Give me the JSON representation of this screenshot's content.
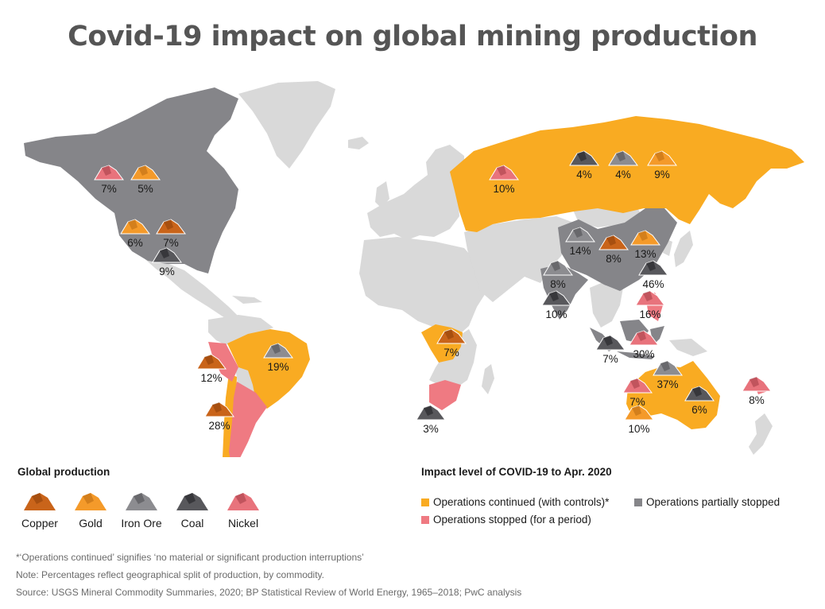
{
  "title": "Covid-19 impact on global mining production",
  "colors": {
    "continued": "#f9ab22",
    "partially_stopped": "#858589",
    "stopped": "#ef7a82",
    "unaffected": "#d9d9d9",
    "copper": "#c9641a",
    "gold": "#f49a2a",
    "iron_ore": "#8c8c90",
    "coal": "#58585c",
    "nickel": "#e8737c"
  },
  "regions": [
    {
      "name": "North America (USA & Canada)",
      "impact": "partially_stopped"
    },
    {
      "name": "Mexico",
      "impact": "unaffected"
    },
    {
      "name": "Peru",
      "impact": "stopped"
    },
    {
      "name": "Chile",
      "impact": "continued"
    },
    {
      "name": "Argentina",
      "impact": "stopped"
    },
    {
      "name": "Brazil",
      "impact": "continued"
    },
    {
      "name": "Russia",
      "impact": "continued"
    },
    {
      "name": "China",
      "impact": "partially_stopped"
    },
    {
      "name": "India",
      "impact": "partially_stopped"
    },
    {
      "name": "Indonesia",
      "impact": "partially_stopped"
    },
    {
      "name": "Philippines",
      "impact": "stopped"
    },
    {
      "name": "DR Congo",
      "impact": "continued"
    },
    {
      "name": "South Africa",
      "impact": "stopped"
    },
    {
      "name": "Australia",
      "impact": "continued"
    },
    {
      "name": "New Caledonia",
      "impact": "stopped"
    }
  ],
  "markers": [
    {
      "region": "Canada",
      "commodity": "nickel",
      "label": "7%"
    },
    {
      "region": "Canada",
      "commodity": "gold",
      "label": "5%"
    },
    {
      "region": "USA",
      "commodity": "gold",
      "label": "6%"
    },
    {
      "region": "USA",
      "commodity": "copper",
      "label": "7%"
    },
    {
      "region": "USA",
      "commodity": "coal",
      "label": "9%"
    },
    {
      "region": "Peru",
      "commodity": "copper",
      "label": "12%"
    },
    {
      "region": "Chile",
      "commodity": "copper",
      "label": "28%"
    },
    {
      "region": "Brazil",
      "commodity": "iron_ore",
      "label": "19%"
    },
    {
      "region": "Russia",
      "commodity": "nickel",
      "label": "10%"
    },
    {
      "region": "Russia",
      "commodity": "coal",
      "label": "4%"
    },
    {
      "region": "Russia",
      "commodity": "iron_ore",
      "label": "4%"
    },
    {
      "region": "Russia",
      "commodity": "gold",
      "label": "9%"
    },
    {
      "region": "China",
      "commodity": "iron_ore",
      "label": "14%"
    },
    {
      "region": "China",
      "commodity": "copper",
      "label": "8%"
    },
    {
      "region": "China",
      "commodity": "gold",
      "label": "13%"
    },
    {
      "region": "China",
      "commodity": "coal",
      "label": "46%"
    },
    {
      "region": "India",
      "commodity": "iron_ore",
      "label": "8%"
    },
    {
      "region": "India",
      "commodity": "coal",
      "label": "10%"
    },
    {
      "region": "Philippines",
      "commodity": "nickel",
      "label": "16%"
    },
    {
      "region": "Indonesia",
      "commodity": "coal",
      "label": "7%"
    },
    {
      "region": "Indonesia",
      "commodity": "nickel",
      "label": "30%"
    },
    {
      "region": "DR Congo",
      "commodity": "copper",
      "label": "7%"
    },
    {
      "region": "South Africa",
      "commodity": "coal",
      "label": "3%"
    },
    {
      "region": "Australia",
      "commodity": "iron_ore",
      "label": "37%"
    },
    {
      "region": "Australia",
      "commodity": "nickel",
      "label": "7%"
    },
    {
      "region": "Australia",
      "commodity": "coal",
      "label": "6%"
    },
    {
      "region": "Australia",
      "commodity": "gold",
      "label": "10%"
    },
    {
      "region": "New Caledonia",
      "commodity": "nickel",
      "label": "8%"
    }
  ],
  "legend": {
    "global_production_heading": "Global production",
    "commodities": [
      {
        "key": "copper",
        "label": "Copper"
      },
      {
        "key": "gold",
        "label": "Gold"
      },
      {
        "key": "iron_ore",
        "label": "Iron Ore"
      },
      {
        "key": "coal",
        "label": "Coal"
      },
      {
        "key": "nickel",
        "label": "Nickel"
      }
    ],
    "impact_heading": "Impact level of COVID-19 to Apr. 2020",
    "impact_items": [
      {
        "key": "continued",
        "label": "Operations continued (with controls)*"
      },
      {
        "key": "partially_stopped",
        "label": "Operations partially stopped"
      },
      {
        "key": "stopped",
        "label": "Operations stopped (for a period)"
      }
    ]
  },
  "footnotes": [
    "*‘Operations continued’ signifies ‘no material or significant production interruptions’",
    "Note: Percentages reflect geographical split of production, by commodity.",
    "Source: USGS Mineral Commodity Summaries, 2020; BP Statistical Review of World Energy, 1965–2018; PwC analysis"
  ]
}
